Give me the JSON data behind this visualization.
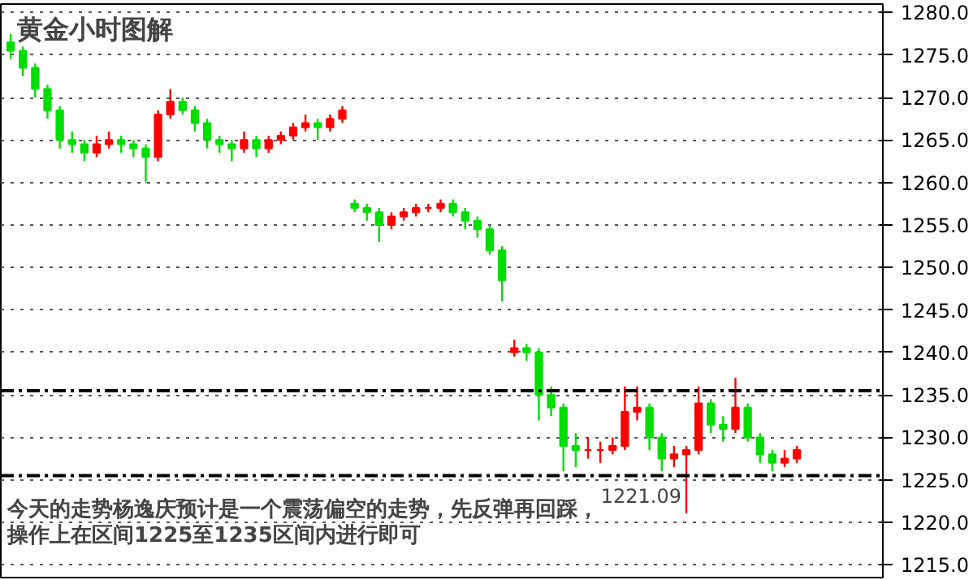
{
  "chart_data": {
    "type": "candlestick",
    "title": "黄金小时图解",
    "categories": [
      null,
      null,
      null,
      null,
      null,
      null,
      null,
      null,
      null,
      null,
      null,
      null,
      null,
      null,
      null,
      null,
      null,
      null,
      null,
      null,
      null,
      null,
      null,
      null,
      null,
      null,
      null,
      null,
      null,
      null,
      null,
      null,
      null,
      null,
      null,
      null,
      null,
      null,
      null,
      null,
      null,
      null,
      null,
      null,
      null,
      null,
      null,
      null,
      null,
      null,
      null,
      null,
      null,
      null,
      null,
      null,
      null,
      null,
      null,
      null,
      null,
      null,
      null,
      null,
      null
    ],
    "ohlc": [
      [
        1276.5,
        1277.5,
        1274.5,
        1275.5
      ],
      [
        1275.5,
        1276,
        1272.5,
        1273.5
      ],
      [
        1273.5,
        1274,
        1270,
        1271
      ],
      [
        1271,
        1271.5,
        1267.5,
        1268.5
      ],
      [
        1268.5,
        1269,
        1264,
        1265
      ],
      [
        1265,
        1266,
        1263.5,
        1264.5
      ],
      [
        1264.5,
        1265,
        1262.5,
        1263.5
      ],
      [
        1263.5,
        1265.5,
        1263,
        1264.5
      ],
      [
        1264.5,
        1266,
        1264,
        1265
      ],
      [
        1265,
        1265.5,
        1263.5,
        1264.5
      ],
      [
        1264.5,
        1265,
        1263,
        1264
      ],
      [
        1264,
        1264.5,
        1260,
        1263
      ],
      [
        1263,
        1268.5,
        1262.5,
        1268
      ],
      [
        1268,
        1271,
        1267.5,
        1269.5
      ],
      [
        1269.5,
        1270,
        1268,
        1268.5
      ],
      [
        1268.5,
        1269,
        1266,
        1267
      ],
      [
        1267,
        1267.5,
        1264,
        1265
      ],
      [
        1265,
        1265.5,
        1263.5,
        1264.5
      ],
      [
        1264.5,
        1265,
        1262.5,
        1264
      ],
      [
        1264,
        1266,
        1263.5,
        1265
      ],
      [
        1265,
        1265.5,
        1263,
        1264
      ],
      [
        1264,
        1265.5,
        1263.5,
        1265
      ],
      [
        1265,
        1266,
        1264.5,
        1265.5
      ],
      [
        1265.5,
        1267,
        1265,
        1266.5
      ],
      [
        1266.5,
        1268,
        1266,
        1267
      ],
      [
        1267,
        1267.5,
        1265,
        1266.5
      ],
      [
        1266.5,
        1268,
        1266,
        1267.5
      ],
      [
        1267.5,
        1269,
        1267,
        1268.5
      ],
      [
        1257.5,
        1258,
        1256.5,
        1257
      ],
      [
        1257,
        1257.5,
        1255.5,
        1256.5
      ],
      [
        1256.5,
        1257,
        1253,
        1255
      ],
      [
        1255,
        1256.5,
        1254.5,
        1256
      ],
      [
        1256,
        1257,
        1255.5,
        1256.5
      ],
      [
        1256.5,
        1257.5,
        1256,
        1257
      ],
      [
        1257,
        1257.5,
        1256.5,
        1257
      ],
      [
        1257,
        1258,
        1256.5,
        1257.5
      ],
      [
        1257.5,
        1258,
        1256,
        1256.5
      ],
      [
        1256.5,
        1257,
        1254.5,
        1255.5
      ],
      [
        1255.5,
        1256,
        1253.5,
        1254.5
      ],
      [
        1254.5,
        1255,
        1251.5,
        1252
      ],
      [
        1252,
        1252.5,
        1246,
        1248.5
      ],
      [
        1240,
        1241.5,
        1239.5,
        1240.5
      ],
      [
        1240.5,
        1241,
        1239,
        1240
      ],
      [
        1240,
        1240.5,
        1232,
        1235
      ],
      [
        1235,
        1236,
        1232.5,
        1233.5
      ],
      [
        1233.5,
        1234,
        1226,
        1229
      ],
      [
        1229,
        1230.5,
        1226.5,
        1228.5
      ],
      [
        1228.5,
        1230,
        1227.5,
        1228.5
      ],
      [
        1228.5,
        1229.5,
        1227,
        1228.5
      ],
      [
        1228.5,
        1230,
        1228,
        1229
      ],
      [
        1229,
        1236,
        1228.5,
        1233
      ],
      [
        1233,
        1236,
        1232,
        1233.5
      ],
      [
        1233.5,
        1234,
        1228.5,
        1230
      ],
      [
        1230,
        1230.5,
        1226,
        1227.5
      ],
      [
        1227.5,
        1229,
        1226.5,
        1228
      ],
      [
        1228,
        1229,
        1221.09,
        1228.5
      ],
      [
        1228.5,
        1236,
        1228,
        1234
      ],
      [
        1234,
        1234.5,
        1230.5,
        1231.5
      ],
      [
        1231.5,
        1232.5,
        1229.5,
        1231
      ],
      [
        1231,
        1237,
        1230.5,
        1233.5
      ],
      [
        1233.5,
        1234,
        1229.5,
        1230
      ],
      [
        1230,
        1230.5,
        1227,
        1228
      ],
      [
        1228,
        1228.5,
        1226,
        1227
      ],
      [
        1227,
        1228.5,
        1226.5,
        1227.5
      ],
      [
        1227.5,
        1229,
        1227,
        1228.5
      ]
    ],
    "colors": [
      "#00dd00",
      "#00dd00",
      "#00dd00",
      "#00dd00",
      "#00dd00",
      "#00dd00",
      "#00dd00",
      "#ff0000",
      "#ff0000",
      "#00dd00",
      "#00dd00",
      "#00dd00",
      "#ff0000",
      "#ff0000",
      "#00dd00",
      "#00dd00",
      "#00dd00",
      "#00dd00",
      "#00dd00",
      "#ff0000",
      "#00dd00",
      "#ff0000",
      "#ff0000",
      "#ff0000",
      "#ff0000",
      "#00dd00",
      "#ff0000",
      "#ff0000",
      "#00dd00",
      "#00dd00",
      "#00dd00",
      "#ff0000",
      "#ff0000",
      "#ff0000",
      "#ff0000",
      "#ff0000",
      "#00dd00",
      "#00dd00",
      "#00dd00",
      "#00dd00",
      "#00dd00",
      "#ff0000",
      "#00dd00",
      "#00dd00",
      "#00dd00",
      "#00dd00",
      "#00dd00",
      "#ff0000",
      "#ff0000",
      "#ff0000",
      "#ff0000",
      "#ff0000",
      "#00dd00",
      "#00dd00",
      "#ff0000",
      "#ff0000",
      "#ff0000",
      "#00dd00",
      "#00dd00",
      "#ff0000",
      "#00dd00",
      "#00dd00",
      "#00dd00",
      "#ff0000",
      "#ff0000"
    ],
    "ylim": [
      1213.5,
      1281
    ],
    "yticks": [
      {
        "value": 1215,
        "label": "1215.0"
      },
      {
        "value": 1220,
        "label": "1220.0"
      },
      {
        "value": 1225,
        "label": "1225.0"
      },
      {
        "value": 1230,
        "label": "1230.0"
      },
      {
        "value": 1235,
        "label": "1235.0"
      },
      {
        "value": 1240,
        "label": "1240.0"
      },
      {
        "value": 1245,
        "label": "1245.0"
      },
      {
        "value": 1250,
        "label": "1250.0"
      },
      {
        "value": 1255,
        "label": "1255.0"
      },
      {
        "value": 1260,
        "label": "1260.0"
      },
      {
        "value": 1265,
        "label": "1265.0"
      },
      {
        "value": 1270,
        "label": "1270.0"
      },
      {
        "value": 1275,
        "label": "1275.0"
      },
      {
        "value": 1280,
        "label": "1280.0"
      }
    ],
    "grid": "y",
    "tick_labels": "y",
    "ref_lines": [
      {
        "axis": "y",
        "value": 1235.5,
        "color": "#000000",
        "line_style": "dashed"
      },
      {
        "axis": "y",
        "value": 1225.5,
        "color": "#000000",
        "line_style": "dashed"
      }
    ],
    "annotations": [
      "1221.09",
      "今天的走势杨逸庆预计是一个震荡偏空的走势，先反弹再回踩，",
      "操作上在区间1225至1235区间内进行即可"
    ]
  }
}
